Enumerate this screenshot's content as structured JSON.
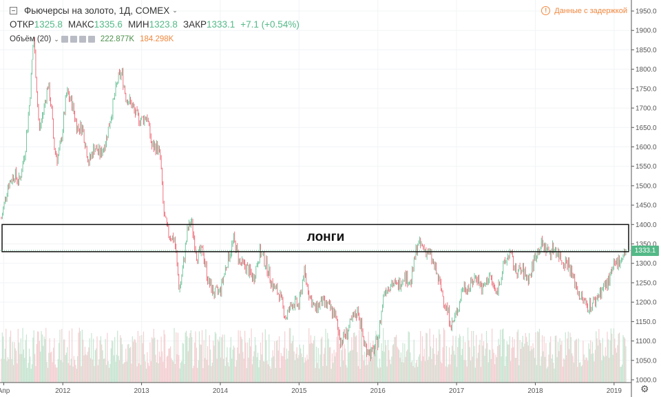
{
  "header": {
    "title": "Фьючерсы на золото, 1Д, COMEX",
    "open_label": "ОТКР",
    "open_value": "1325.8",
    "high_label": "МАКС",
    "high_value": "1335.6",
    "low_label": "МИН",
    "low_value": "1323.8",
    "close_label": "ЗАКР",
    "close_value": "1333.1",
    "change": "+7.1 (+0.54%)",
    "volume_label": "Объём (20)",
    "volume_value": "222.877K",
    "volume_ma": "184.298K",
    "delay_notice": "Данные с задержкой",
    "delay_icon": "!"
  },
  "colors": {
    "up": "#53b987",
    "down": "#eb4d5c",
    "accent": "#f0883e",
    "volume_up": "#c7e5d1",
    "volume_down": "#f4cfd2"
  },
  "annotation": {
    "label": "лонги",
    "y_low": 1330,
    "y_high": 1400
  },
  "price_tag": "1333.1",
  "chart_data": {
    "type": "candlestick",
    "title": "Фьючерсы на золото, 1Д, COMEX",
    "y_ticks": [
      "1950.0",
      "1900.0",
      "1850.0",
      "1800.0",
      "1750.0",
      "1700.0",
      "1650.0",
      "1600.0",
      "1550.0",
      "1500.0",
      "1450.0",
      "1400.0",
      "1350.0",
      "1300.0",
      "1250.0",
      "1200.0",
      "1150.0",
      "1100.0",
      "1050.0",
      "1000.0"
    ],
    "ylim": [
      1000,
      1950
    ],
    "x_ticks": [
      "Апр",
      "2012",
      "2013",
      "2014",
      "2015",
      "2016",
      "2017",
      "2018",
      "2019"
    ],
    "x_tick_dates": [
      2011.25,
      2012,
      2013,
      2014,
      2015,
      2016,
      2017,
      2018,
      2019
    ],
    "xlim": [
      2011.22,
      2019.15
    ],
    "grid": true,
    "series": [
      {
        "values": [
          [
            2011.22,
            1415
          ],
          [
            2011.3,
            1500
          ],
          [
            2011.38,
            1530
          ],
          [
            2011.45,
            1510
          ],
          [
            2011.52,
            1590
          ],
          [
            2011.58,
            1720
          ],
          [
            2011.63,
            1890
          ],
          [
            2011.66,
            1780
          ],
          [
            2011.7,
            1640
          ],
          [
            2011.76,
            1700
          ],
          [
            2011.81,
            1760
          ],
          [
            2011.85,
            1710
          ],
          [
            2011.89,
            1600
          ],
          [
            2011.93,
            1570
          ],
          [
            2011.97,
            1600
          ],
          [
            2012.05,
            1740
          ],
          [
            2012.12,
            1710
          ],
          [
            2012.18,
            1650
          ],
          [
            2012.25,
            1650
          ],
          [
            2012.33,
            1560
          ],
          [
            2012.4,
            1600
          ],
          [
            2012.48,
            1580
          ],
          [
            2012.55,
            1620
          ],
          [
            2012.62,
            1690
          ],
          [
            2012.7,
            1775
          ],
          [
            2012.75,
            1790
          ],
          [
            2012.8,
            1730
          ],
          [
            2012.87,
            1710
          ],
          [
            2012.93,
            1680
          ],
          [
            2013.0,
            1670
          ],
          [
            2013.07,
            1680
          ],
          [
            2013.13,
            1600
          ],
          [
            2013.2,
            1600
          ],
          [
            2013.24,
            1570
          ],
          [
            2013.28,
            1430
          ],
          [
            2013.33,
            1380
          ],
          [
            2013.42,
            1360
          ],
          [
            2013.48,
            1230
          ],
          [
            2013.52,
            1280
          ],
          [
            2013.58,
            1380
          ],
          [
            2013.63,
            1410
          ],
          [
            2013.7,
            1320
          ],
          [
            2013.78,
            1330
          ],
          [
            2013.85,
            1250
          ],
          [
            2013.93,
            1220
          ],
          [
            2014.0,
            1230
          ],
          [
            2014.08,
            1300
          ],
          [
            2014.17,
            1360
          ],
          [
            2014.25,
            1300
          ],
          [
            2014.33,
            1290
          ],
          [
            2014.42,
            1260
          ],
          [
            2014.5,
            1330
          ],
          [
            2014.58,
            1300
          ],
          [
            2014.67,
            1240
          ],
          [
            2014.75,
            1220
          ],
          [
            2014.83,
            1160
          ],
          [
            2014.92,
            1200
          ],
          [
            2015.0,
            1190
          ],
          [
            2015.06,
            1280
          ],
          [
            2015.13,
            1220
          ],
          [
            2015.2,
            1180
          ],
          [
            2015.28,
            1200
          ],
          [
            2015.36,
            1190
          ],
          [
            2015.45,
            1170
          ],
          [
            2015.53,
            1100
          ],
          [
            2015.6,
            1120
          ],
          [
            2015.67,
            1150
          ],
          [
            2015.75,
            1180
          ],
          [
            2015.83,
            1090
          ],
          [
            2015.92,
            1065
          ],
          [
            2016.0,
            1100
          ],
          [
            2016.08,
            1230
          ],
          [
            2016.17,
            1250
          ],
          [
            2016.25,
            1240
          ],
          [
            2016.33,
            1270
          ],
          [
            2016.42,
            1250
          ],
          [
            2016.5,
            1350
          ],
          [
            2016.58,
            1340
          ],
          [
            2016.67,
            1320
          ],
          [
            2016.75,
            1270
          ],
          [
            2016.85,
            1200
          ],
          [
            2016.94,
            1140
          ],
          [
            2017.0,
            1170
          ],
          [
            2017.08,
            1240
          ],
          [
            2017.17,
            1240
          ],
          [
            2017.25,
            1270
          ],
          [
            2017.33,
            1230
          ],
          [
            2017.42,
            1270
          ],
          [
            2017.5,
            1220
          ],
          [
            2017.58,
            1280
          ],
          [
            2017.67,
            1330
          ],
          [
            2017.75,
            1280
          ],
          [
            2017.83,
            1280
          ],
          [
            2017.92,
            1260
          ],
          [
            2018.0,
            1320
          ],
          [
            2018.08,
            1350
          ],
          [
            2018.17,
            1330
          ],
          [
            2018.25,
            1340
          ],
          [
            2018.33,
            1310
          ],
          [
            2018.42,
            1300
          ],
          [
            2018.5,
            1250
          ],
          [
            2018.58,
            1210
          ],
          [
            2018.67,
            1190
          ],
          [
            2018.75,
            1200
          ],
          [
            2018.83,
            1230
          ],
          [
            2018.92,
            1250
          ],
          [
            2019.0,
            1290
          ],
          [
            2019.07,
            1310
          ],
          [
            2019.15,
            1333
          ]
        ]
      }
    ]
  }
}
